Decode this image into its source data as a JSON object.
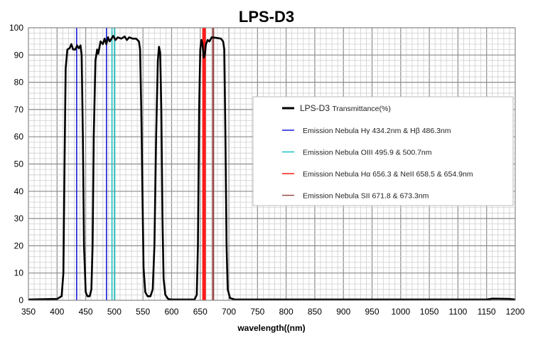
{
  "chart_data": {
    "type": "line",
    "title": "LPS-D3",
    "xlabel": "wavelength((nm)",
    "ylabel": "",
    "xlim": [
      350,
      1200
    ],
    "ylim": [
      0,
      100
    ],
    "x_ticks": [
      350,
      400,
      450,
      500,
      550,
      600,
      650,
      700,
      750,
      800,
      850,
      900,
      950,
      1000,
      1050,
      1100,
      1150,
      1200
    ],
    "y_ticks": [
      0,
      10,
      20,
      30,
      40,
      50,
      60,
      70,
      80,
      90,
      100
    ],
    "grid": true,
    "legend_placement": "right",
    "series": [
      {
        "name": "LPS-D3",
        "name_suffix": "Transmittance(%)",
        "color": "#000000",
        "points": [
          [
            350,
            0.3
          ],
          [
            400,
            0.5
          ],
          [
            408,
            1.5
          ],
          [
            411,
            10
          ],
          [
            413,
            50
          ],
          [
            415,
            85
          ],
          [
            418,
            92
          ],
          [
            422,
            92.5
          ],
          [
            425,
            94
          ],
          [
            428,
            92
          ],
          [
            432,
            92
          ],
          [
            435,
            93.5
          ],
          [
            438,
            92.5
          ],
          [
            441,
            93.5
          ],
          [
            443,
            90
          ],
          [
            445,
            60
          ],
          [
            447,
            20
          ],
          [
            450,
            3
          ],
          [
            453,
            1.5
          ],
          [
            457,
            1.5
          ],
          [
            460,
            4
          ],
          [
            462,
            20
          ],
          [
            464,
            60
          ],
          [
            467,
            88
          ],
          [
            470,
            92
          ],
          [
            472,
            90.5
          ],
          [
            476,
            95
          ],
          [
            480,
            94
          ],
          [
            483,
            96
          ],
          [
            486,
            94
          ],
          [
            489,
            96.5
          ],
          [
            492,
            95
          ],
          [
            495,
            96
          ],
          [
            498,
            97
          ],
          [
            502,
            95.5
          ],
          [
            506,
            96.5
          ],
          [
            512,
            96
          ],
          [
            518,
            96.8
          ],
          [
            522,
            95.5
          ],
          [
            526,
            96.5
          ],
          [
            532,
            96
          ],
          [
            538,
            96
          ],
          [
            543,
            95
          ],
          [
            545,
            92
          ],
          [
            547,
            70
          ],
          [
            549,
            40
          ],
          [
            551,
            12
          ],
          [
            554,
            3
          ],
          [
            558,
            1.5
          ],
          [
            563,
            1.5
          ],
          [
            567,
            4
          ],
          [
            570,
            20
          ],
          [
            573,
            60
          ],
          [
            576,
            88
          ],
          [
            578,
            93
          ],
          [
            580,
            91
          ],
          [
            582,
            70
          ],
          [
            584,
            30
          ],
          [
            586,
            8
          ],
          [
            589,
            2
          ],
          [
            594,
            0.5
          ],
          [
            600,
            0.3
          ],
          [
            640,
            0.3
          ],
          [
            644,
            2
          ],
          [
            646,
            20
          ],
          [
            648,
            70
          ],
          [
            650,
            92
          ],
          [
            652,
            95.5
          ],
          [
            654,
            94
          ],
          [
            656,
            89
          ],
          [
            658,
            90
          ],
          [
            660,
            94
          ],
          [
            663,
            95.5
          ],
          [
            666,
            95
          ],
          [
            670,
            96.5
          ],
          [
            678,
            96.3
          ],
          [
            686,
            96
          ],
          [
            690,
            95
          ],
          [
            692,
            92
          ],
          [
            694,
            60
          ],
          [
            696,
            20
          ],
          [
            698,
            4
          ],
          [
            702,
            0.8
          ],
          [
            710,
            0.3
          ],
          [
            1150,
            0.3
          ],
          [
            1160,
            0.6
          ],
          [
            1190,
            0.5
          ],
          [
            1200,
            0.3
          ]
        ]
      }
    ],
    "reference_lines": [
      {
        "name": "Emission Nebula  Hγ 434.2nm  &  Hβ 486.3nm",
        "color": "#1a1adc",
        "x": [
          434.2,
          486.3
        ]
      },
      {
        "name": "Emission Nebula  OIII  495.9 & 500.7nm",
        "color": "#19c0c0",
        "x": [
          495.9,
          500.7
        ]
      },
      {
        "name": "Emission Nebula  Hα 656.3 & NeII  658.5 & 654.9nm",
        "color": "#ff1a1a",
        "x": [
          654.9,
          656.3,
          658.5
        ]
      },
      {
        "name": "Emission Nebula  SII  671.8 & 673.3nm",
        "color": "#9a4a4a",
        "x": [
          671.8,
          673.3
        ]
      }
    ]
  }
}
